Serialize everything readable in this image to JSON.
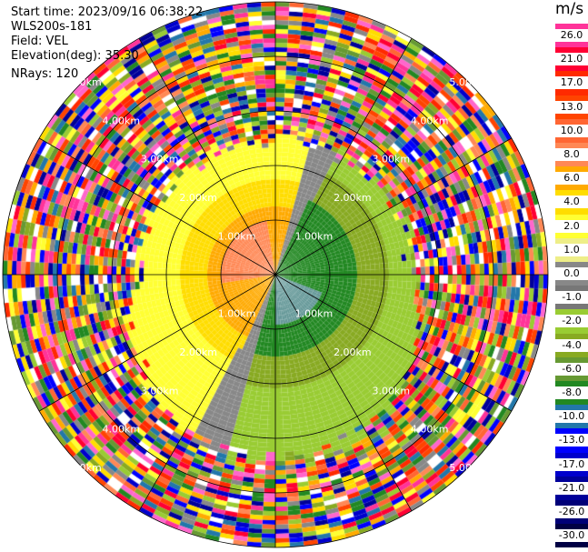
{
  "info": {
    "start_time": "Start time: 2023/09/16 06:38:22",
    "device": "WLS200s-181",
    "field": "Field: VEL",
    "elevation": "Elevation(deg): 35.30",
    "nrays": "NRays: 120"
  },
  "colorbar": {
    "unit": "m/s",
    "labels": [
      "26.0",
      "21.0",
      "17.0",
      "13.0",
      "10.0",
      "8.0",
      "6.0",
      "4.0",
      "2.0",
      "1.0",
      "0.0",
      "-1.0",
      "-2.0",
      "-4.0",
      "-6.0",
      "-8.0",
      "-10.0",
      "-13.0",
      "-17.0",
      "-21.0",
      "-26.0",
      "-30.0"
    ],
    "colors": [
      "#ff3399",
      "#ff0033",
      "#ff2a00",
      "#ff4400",
      "#ff6633",
      "#ff8855",
      "#ffaa00",
      "#ffdd00",
      "#ffff33",
      "#eeee88",
      "#888888",
      "#777777",
      "#99cc33",
      "#88aa22",
      "#669933",
      "#228822",
      "#2277aa",
      "#0000ff",
      "#0000cc",
      "#000099",
      "#000077",
      "#000044"
    ]
  },
  "range_labels": [
    "1.00km",
    "2.00km",
    "3.00km",
    "4.00km",
    "5.00km"
  ]
}
